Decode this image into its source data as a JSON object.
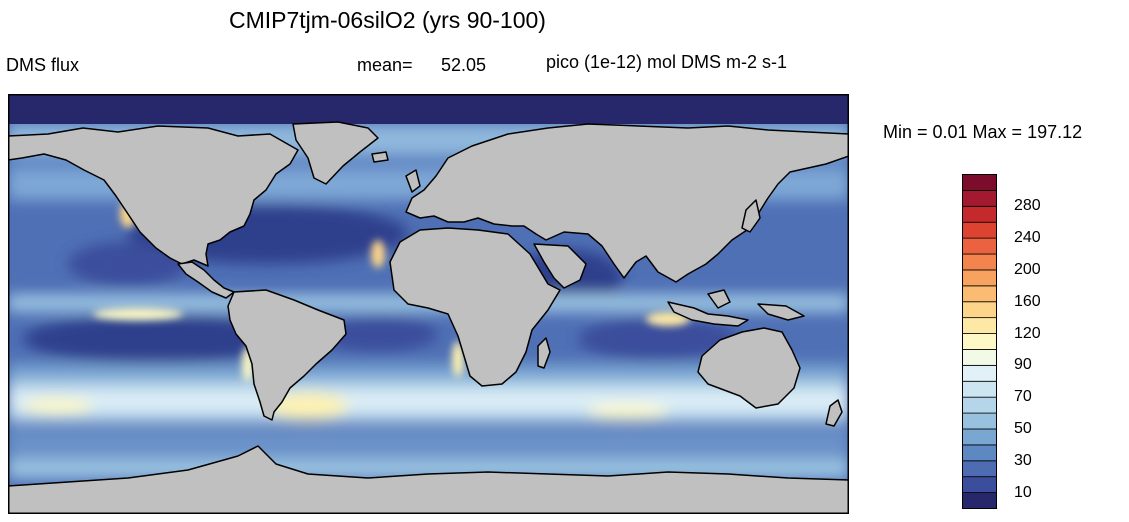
{
  "header": {
    "title": "CMIP7tjm-06silO2 (yrs 90-100)",
    "variable": "DMS flux",
    "mean_label": "mean=",
    "mean_value": "52.05",
    "units": "pico (1e-12) mol DMS m-2 s-1"
  },
  "stats": {
    "text": "Min =   0.01 Max = 197.12",
    "min": 0.01,
    "max": 197.12
  },
  "colorbar": {
    "labels": [
      "10",
      "30",
      "50",
      "70",
      "90",
      "120",
      "160",
      "200",
      "240",
      "280"
    ],
    "levels": [
      10,
      20,
      30,
      40,
      50,
      60,
      70,
      80,
      90,
      100,
      120,
      140,
      160,
      180,
      200,
      220,
      240,
      260,
      280,
      300
    ],
    "colors": [
      "#27286b",
      "#3b4d9c",
      "#4d6cb2",
      "#5e88c2",
      "#7aa6d2",
      "#98c1e0",
      "#b5d6ea",
      "#cde5f1",
      "#e2f1f7",
      "#f2f9e6",
      "#fdf8c6",
      "#fde9a5",
      "#fcd48a",
      "#fbbb73",
      "#f8a25f",
      "#f3844d",
      "#ea623f",
      "#dc4331",
      "#c42a2c",
      "#a3192f",
      "#7c0c2c"
    ]
  },
  "colors": {
    "land": "#c0c0c0",
    "ocean_low": "#3a56a0",
    "ocean_high": "#fdf2b3",
    "sea_ice": "#27286b",
    "coast": "#000000"
  }
}
